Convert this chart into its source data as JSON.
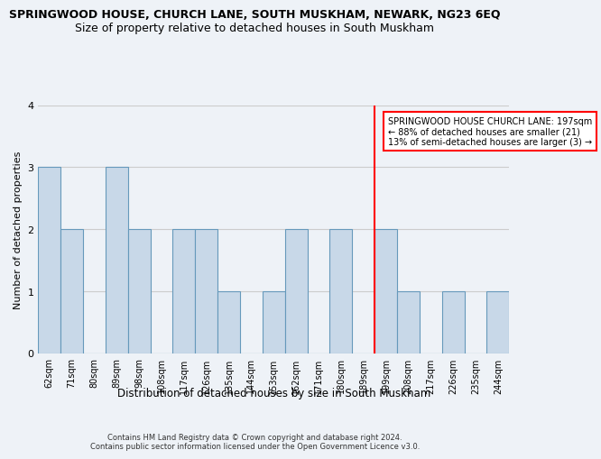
{
  "title": "SPRINGWOOD HOUSE, CHURCH LANE, SOUTH MUSKHAM, NEWARK, NG23 6EQ",
  "subtitle": "Size of property relative to detached houses in South Muskham",
  "xlabel": "Distribution of detached houses by size in South Muskham",
  "ylabel": "Number of detached properties",
  "categories": [
    "62sqm",
    "71sqm",
    "80sqm",
    "89sqm",
    "98sqm",
    "108sqm",
    "117sqm",
    "126sqm",
    "135sqm",
    "144sqm",
    "153sqm",
    "162sqm",
    "171sqm",
    "180sqm",
    "189sqm",
    "199sqm",
    "208sqm",
    "217sqm",
    "226sqm",
    "235sqm",
    "244sqm"
  ],
  "values": [
    3,
    2,
    0,
    3,
    2,
    0,
    2,
    2,
    1,
    0,
    1,
    2,
    0,
    2,
    0,
    2,
    1,
    0,
    1,
    0,
    1
  ],
  "bar_color": "#c8d8e8",
  "bar_edge_color": "#6699bb",
  "red_line_x": 14.5,
  "red_line_label": "SPRINGWOOD HOUSE CHURCH LANE: 197sqm\n← 88% of detached houses are smaller (21)\n13% of semi-detached houses are larger (3) →",
  "ylim": [
    0,
    4
  ],
  "yticks": [
    0,
    1,
    2,
    3,
    4
  ],
  "grid_color": "#cccccc",
  "background_color": "#eef2f7",
  "plot_bg_color": "#eef2f7",
  "footer": "Contains HM Land Registry data © Crown copyright and database right 2024.\nContains public sector information licensed under the Open Government Licence v3.0.",
  "title_fontsize": 9,
  "subtitle_fontsize": 9,
  "xlabel_fontsize": 8.5,
  "ylabel_fontsize": 8,
  "tick_fontsize": 7,
  "footer_fontsize": 6
}
